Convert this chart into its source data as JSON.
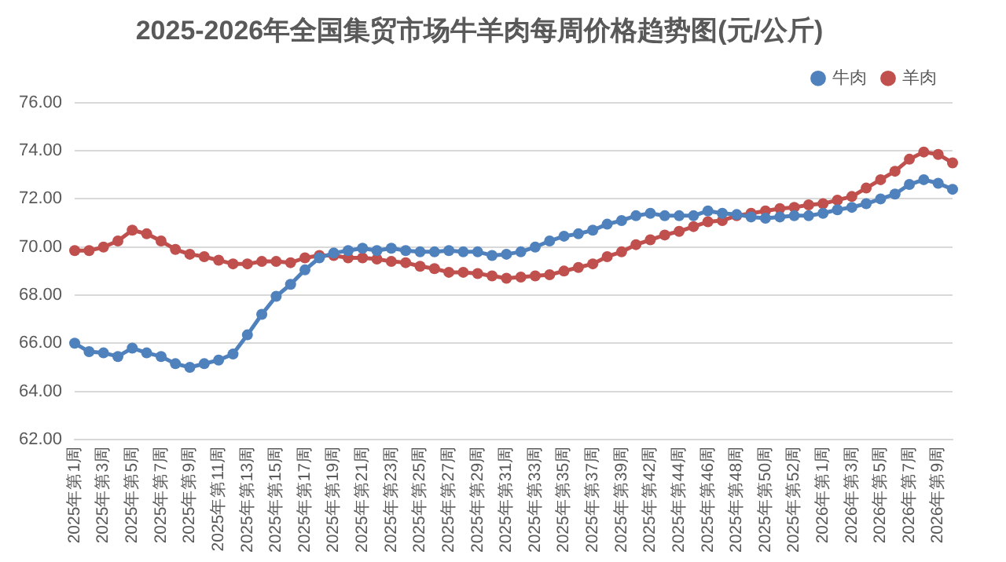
{
  "chart_data": {
    "type": "line",
    "title": "2025-2026年全国集贸市场牛羊肉每周价格趋势图(元/公斤)",
    "categories": [
      "2025年第1周",
      null,
      "2025年第3周",
      null,
      "2025年第5周",
      null,
      "2025年第7周",
      null,
      "2025年第9周",
      null,
      "2025年第11周",
      null,
      "2025年第13周",
      null,
      "2025年第15周",
      null,
      "2025年第17周",
      null,
      "2025年第19周",
      null,
      "2025年第21周",
      null,
      "2025年第23周",
      null,
      "2025年第25周",
      null,
      "2025年第27周",
      null,
      "2025年第29周",
      null,
      "2025年第31周",
      null,
      "2025年第33周",
      null,
      "2025年第35周",
      null,
      "2025年第37周",
      null,
      "2025年第39周",
      null,
      "2025年第42周",
      null,
      "2025年第44周",
      null,
      "2025年第46周",
      null,
      "2025年第48周",
      null,
      "2025年第50周",
      null,
      "2025年第52周",
      null,
      "2026年第1周",
      null,
      "2026年第3周",
      null,
      "2026年第5周",
      null,
      "2026年第7周",
      null,
      "2026年第9周",
      null
    ],
    "series": [
      {
        "name": "牛肉",
        "color": "#4f81bd",
        "values": [
          66.0,
          65.65,
          65.6,
          65.45,
          65.8,
          65.6,
          65.45,
          65.15,
          65.0,
          65.15,
          65.3,
          65.55,
          66.35,
          67.2,
          67.95,
          68.45,
          69.05,
          69.55,
          69.75,
          69.85,
          69.95,
          69.85,
          69.95,
          69.85,
          69.8,
          69.8,
          69.85,
          69.8,
          69.8,
          69.65,
          69.7,
          69.8,
          70.0,
          70.25,
          70.45,
          70.55,
          70.7,
          70.95,
          71.1,
          71.3,
          71.4,
          71.3,
          71.3,
          71.3,
          71.5,
          71.4,
          71.35,
          71.25,
          71.2,
          71.25,
          71.3,
          71.3,
          71.4,
          71.55,
          71.65,
          71.8,
          72.0,
          72.2,
          72.6,
          72.8,
          72.65,
          72.4
        ]
      },
      {
        "name": "羊肉",
        "color": "#c0504d",
        "values": [
          69.85,
          69.85,
          70.0,
          70.25,
          70.7,
          70.55,
          70.25,
          69.9,
          69.7,
          69.6,
          69.45,
          69.3,
          69.3,
          69.4,
          69.4,
          69.35,
          69.55,
          69.65,
          69.65,
          69.55,
          69.55,
          69.5,
          69.4,
          69.35,
          69.2,
          69.1,
          68.95,
          68.95,
          68.9,
          68.8,
          68.7,
          68.75,
          68.8,
          68.85,
          69.0,
          69.15,
          69.3,
          69.6,
          69.8,
          70.1,
          70.3,
          70.5,
          70.65,
          70.85,
          71.05,
          71.1,
          71.3,
          71.4,
          71.5,
          71.6,
          71.65,
          71.75,
          71.8,
          71.95,
          72.1,
          72.45,
          72.8,
          73.15,
          73.65,
          73.95,
          73.85,
          73.5
        ]
      }
    ],
    "ylim": [
      62,
      76
    ],
    "yticks": [
      {
        "value": 62,
        "label": "62.00"
      },
      {
        "value": 64,
        "label": "64.00"
      },
      {
        "value": 66,
        "label": "66.00"
      },
      {
        "value": 68,
        "label": "68.00"
      },
      {
        "value": 70,
        "label": "70.00"
      },
      {
        "value": 72,
        "label": "72.00"
      },
      {
        "value": 74,
        "label": "74.00"
      },
      {
        "value": 76,
        "label": "76.00"
      }
    ],
    "grid": "y",
    "legend": "top right",
    "marker": "circle",
    "line_style": "solid"
  }
}
